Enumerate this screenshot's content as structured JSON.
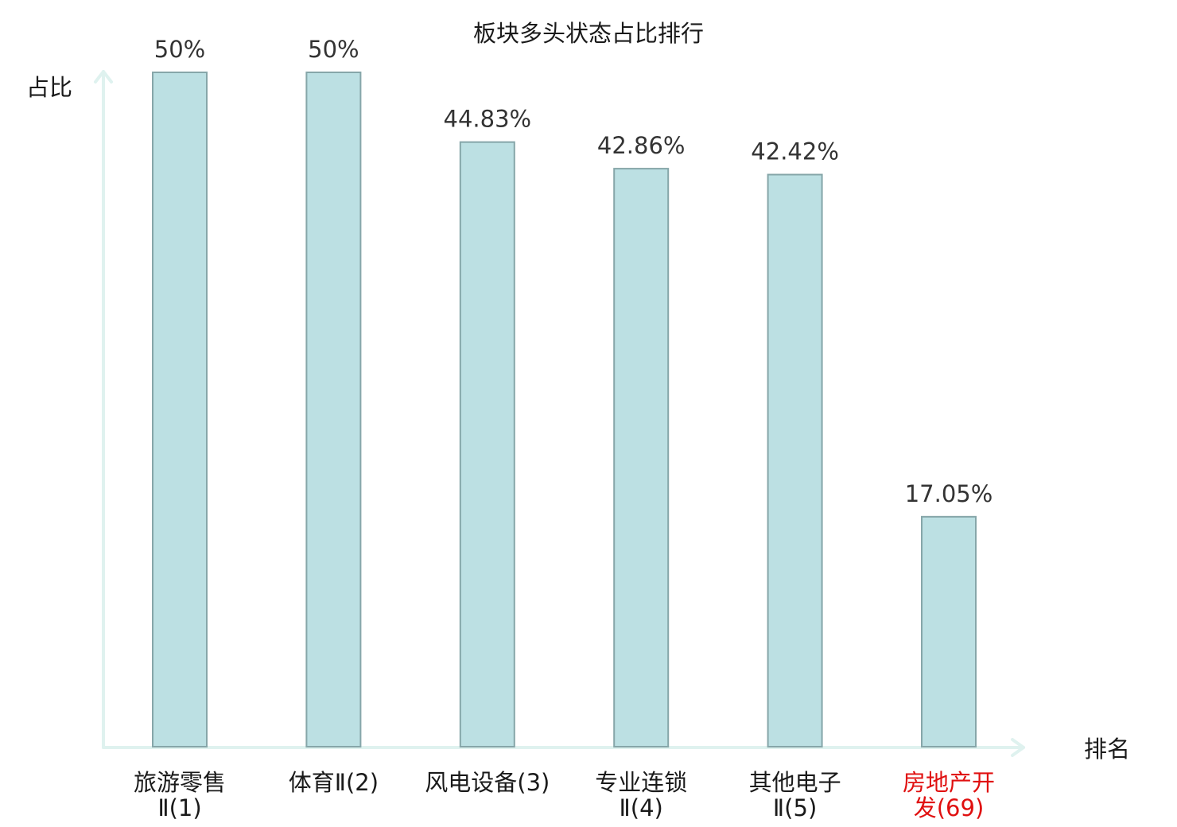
{
  "chart_data": {
    "type": "bar",
    "title": "板块多头状态占比排行",
    "ylabel": "占比",
    "xlabel": "排名",
    "ylim": [
      0,
      50
    ],
    "grid": false,
    "categories": [
      {
        "line1": "旅游零售",
        "line2": "Ⅱ(1)",
        "highlight": false
      },
      {
        "line1": "体育Ⅱ(2)",
        "line2": "",
        "highlight": false
      },
      {
        "line1": "风电设备(3)",
        "line2": "",
        "highlight": false
      },
      {
        "line1": "专业连锁",
        "line2": "Ⅱ(4)",
        "highlight": false
      },
      {
        "line1": "其他电子",
        "line2": "Ⅱ(5)",
        "highlight": false
      },
      {
        "line1": "房地产开",
        "line2": "发(69)",
        "highlight": true
      }
    ],
    "values": [
      50,
      50,
      44.83,
      42.86,
      42.42,
      17.05
    ],
    "value_labels": [
      "50%",
      "50%",
      "44.83%",
      "42.86%",
      "42.42%",
      "17.05%"
    ],
    "colors": {
      "bar_fill": "#bce0e3",
      "bar_stroke": "#86a6a9",
      "axis": "#dff2ef",
      "highlight_text": "#e01010"
    }
  }
}
